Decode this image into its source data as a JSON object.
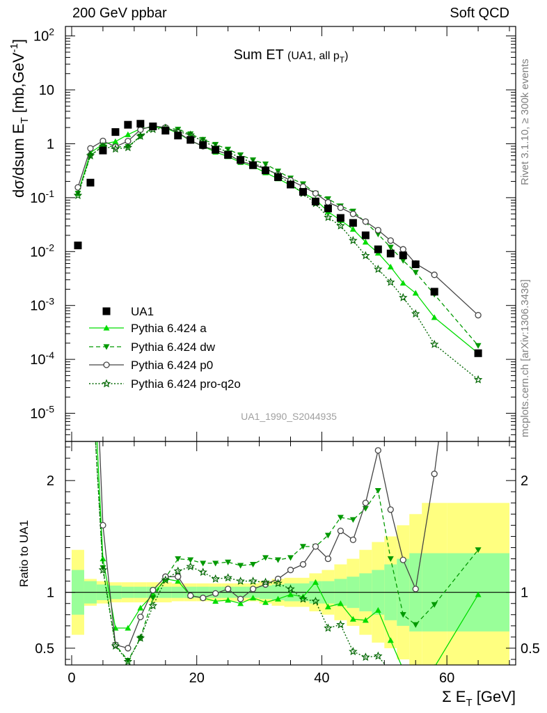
{
  "header": {
    "left": "200 GeV ppbar",
    "right": "Soft QCD"
  },
  "side_labels": {
    "rivet": "Rivet 3.1.10, ≥ 300k events",
    "mcplots": "mcplots.cern.ch [arXiv:1306.3436]"
  },
  "main_title": "Sum ET",
  "main_subtitle": "(UA1, all p",
  "main_subtitle_sub": "T",
  "main_subtitle_end": ")",
  "watermark": "UA1_1990_S2044935",
  "ylabel_main": "dσ/dsum E_T [mb,GeV^-1]",
  "ylabel_ratio": "Ratio to UA1",
  "xlabel": "Σ E_T [GeV]",
  "legend": [
    {
      "label": "UA1"
    },
    {
      "label": "Pythia 6.424 a"
    },
    {
      "label": "Pythia 6.424 dw"
    },
    {
      "label": "Pythia 6.424 p0"
    },
    {
      "label": "Pythia 6.424 pro-q2o"
    }
  ],
  "chart_data": {
    "type": "scatter",
    "x_axis": {
      "range": [
        -1,
        71
      ],
      "ticks": [
        0,
        20,
        40,
        60
      ]
    },
    "main_y_axis": {
      "scale": "log",
      "range": [
        3e-06,
        150
      ],
      "tick_labels": [
        "10^-5",
        "10^-4",
        "10^-3",
        "10^-2",
        "10^-1",
        "1",
        "10",
        "10^2"
      ]
    },
    "ratio_y_axis": {
      "range": [
        0.35,
        2.35
      ],
      "tick_labels": [
        "0.5",
        "1",
        "2"
      ]
    },
    "data": {
      "name": "UA1",
      "x": [
        1,
        3,
        5,
        7,
        9,
        11,
        13,
        15,
        17,
        19,
        21,
        23,
        25,
        27,
        29,
        31,
        33,
        35,
        37,
        39,
        41,
        43,
        45,
        47,
        49,
        51,
        53,
        55,
        58,
        65
      ],
      "y": [
        0.013,
        0.19,
        0.75,
        1.65,
        2.25,
        2.35,
        2.1,
        1.75,
        1.42,
        1.18,
        0.95,
        0.77,
        0.62,
        0.5,
        0.4,
        0.32,
        0.24,
        0.175,
        0.128,
        0.085,
        0.063,
        0.042,
        0.034,
        0.02,
        0.011,
        0.0092,
        0.0085,
        0.0058,
        0.0018,
        0.00013
      ]
    },
    "series": [
      {
        "name": "Pythia 6.424 a",
        "color": "#00dd00",
        "x": [
          1,
          3,
          5,
          7,
          9,
          11,
          13,
          15,
          17,
          19,
          21,
          23,
          25,
          27,
          29,
          31,
          33,
          35,
          37,
          39,
          41,
          43,
          45,
          47,
          49,
          51,
          53,
          55,
          58,
          65
        ],
        "y": [
          0.12,
          0.68,
          0.98,
          1.1,
          1.48,
          1.9,
          2.05,
          1.95,
          1.57,
          1.14,
          0.9,
          0.7,
          0.58,
          0.45,
          0.38,
          0.29,
          0.225,
          0.17,
          0.123,
          0.092,
          0.055,
          0.038,
          0.026,
          0.015,
          0.0094,
          0.0052,
          0.0026,
          0.0017,
          0.0006,
          0.00013
        ],
        "ratio": [
          9.2,
          3.55,
          1.3,
          0.68,
          0.68,
          0.86,
          0.98,
          1.12,
          1.1,
          0.97,
          0.95,
          0.92,
          0.93,
          0.9,
          0.95,
          0.91,
          0.94,
          0.98,
          0.96,
          1.09,
          0.87,
          0.9,
          0.76,
          0.75,
          0.84,
          0.57,
          0.31,
          0.29,
          0.33,
          0.98
        ]
      },
      {
        "name": "Pythia 6.424 dw",
        "color": "#009900",
        "x": [
          1,
          3,
          5,
          7,
          9,
          11,
          13,
          15,
          17,
          19,
          21,
          23,
          25,
          27,
          29,
          31,
          33,
          35,
          37,
          39,
          41,
          43,
          45,
          47,
          49,
          51,
          53,
          55,
          58,
          65
        ],
        "y": [
          0.12,
          0.6,
          0.92,
          0.88,
          0.88,
          1.38,
          2.0,
          1.97,
          1.85,
          1.52,
          1.2,
          0.97,
          0.79,
          0.62,
          0.5,
          0.42,
          0.31,
          0.23,
          0.18,
          0.12,
          0.095,
          0.07,
          0.056,
          0.035,
          0.021,
          0.012,
          0.0068,
          0.0041,
          0.0016,
          0.00018
        ],
        "ratio": [
          9.2,
          3.15,
          1.22,
          0.53,
          0.39,
          0.59,
          0.95,
          1.13,
          1.3,
          1.29,
          1.26,
          1.26,
          1.27,
          1.24,
          1.25,
          1.31,
          1.29,
          1.31,
          1.41,
          1.41,
          1.51,
          1.67,
          1.65,
          1.75,
          1.91,
          1.3,
          0.8,
          0.71,
          0.89,
          1.38
        ]
      },
      {
        "name": "Pythia 6.424 p0",
        "color": "#444444",
        "x": [
          1,
          3,
          5,
          7,
          9,
          11,
          13,
          15,
          17,
          19,
          21,
          23,
          25,
          27,
          29,
          31,
          33,
          35,
          37,
          39,
          41,
          43,
          45,
          47,
          49,
          51,
          53,
          55,
          58,
          65
        ],
        "y": [
          0.155,
          0.82,
          1.13,
          0.88,
          1.12,
          1.82,
          2.15,
          2.0,
          1.62,
          1.15,
          0.9,
          0.76,
          0.64,
          0.47,
          0.41,
          0.34,
          0.27,
          0.21,
          0.16,
          0.12,
          0.082,
          0.065,
          0.05,
          0.036,
          0.025,
          0.016,
          0.011,
          0.006,
          0.0037,
          0.00066
        ],
        "ratio": [
          11.5,
          4.3,
          1.6,
          0.53,
          0.5,
          0.78,
          1.02,
          1.14,
          1.14,
          0.97,
          0.95,
          0.99,
          1.03,
          0.94,
          1.03,
          1.07,
          1.12,
          1.2,
          1.25,
          1.41,
          1.3,
          1.55,
          1.47,
          1.8,
          2.27,
          1.74,
          1.29,
          1.03,
          2.06,
          5.1
        ]
      },
      {
        "name": "Pythia 6.424 pro-q2o",
        "color": "#006600",
        "x": [
          1,
          3,
          5,
          7,
          9,
          11,
          13,
          15,
          17,
          19,
          21,
          23,
          25,
          27,
          29,
          31,
          33,
          35,
          37,
          39,
          41,
          43,
          45,
          47,
          49,
          51,
          53,
          55,
          58,
          65
        ],
        "y": [
          0.11,
          0.6,
          0.9,
          0.8,
          0.85,
          1.38,
          1.85,
          1.95,
          1.7,
          1.45,
          1.12,
          0.86,
          0.7,
          0.55,
          0.44,
          0.35,
          0.26,
          0.18,
          0.12,
          0.078,
          0.043,
          0.03,
          0.016,
          0.0084,
          0.0047,
          0.0027,
          0.0014,
          0.0007,
          0.00019,
          4.2e-05
        ],
        "ratio": [
          8.5,
          3.15,
          1.2,
          0.52,
          0.38,
          0.59,
          0.88,
          1.11,
          1.19,
          1.23,
          1.18,
          1.12,
          1.13,
          1.1,
          1.1,
          1.09,
          1.08,
          1.03,
          0.94,
          0.92,
          0.68,
          0.71,
          0.47,
          0.42,
          0.43,
          0.29,
          0.16,
          0.12,
          0.11,
          0.32
        ]
      }
    ],
    "ratio_band": {
      "x_edges": [
        0,
        2,
        4,
        6,
        8,
        10,
        12,
        14,
        16,
        18,
        20,
        22,
        24,
        26,
        28,
        30,
        32,
        34,
        36,
        38,
        40,
        42,
        44,
        46,
        48,
        50,
        52,
        54,
        56,
        60,
        70
      ],
      "stat_half_width": [
        0.2,
        0.1,
        0.07,
        0.06,
        0.05,
        0.05,
        0.05,
        0.05,
        0.05,
        0.05,
        0.05,
        0.05,
        0.05,
        0.05,
        0.05,
        0.06,
        0.07,
        0.08,
        0.08,
        0.1,
        0.1,
        0.12,
        0.14,
        0.17,
        0.2,
        0.25,
        0.3,
        0.35,
        0.35,
        0.35
      ],
      "total_half_width": [
        0.38,
        0.12,
        0.1,
        0.09,
        0.09,
        0.09,
        0.09,
        0.09,
        0.08,
        0.08,
        0.08,
        0.08,
        0.08,
        0.08,
        0.08,
        0.1,
        0.12,
        0.13,
        0.13,
        0.17,
        0.2,
        0.25,
        0.3,
        0.38,
        0.45,
        0.5,
        0.6,
        0.7,
        0.8,
        0.8
      ]
    },
    "grid": false
  }
}
